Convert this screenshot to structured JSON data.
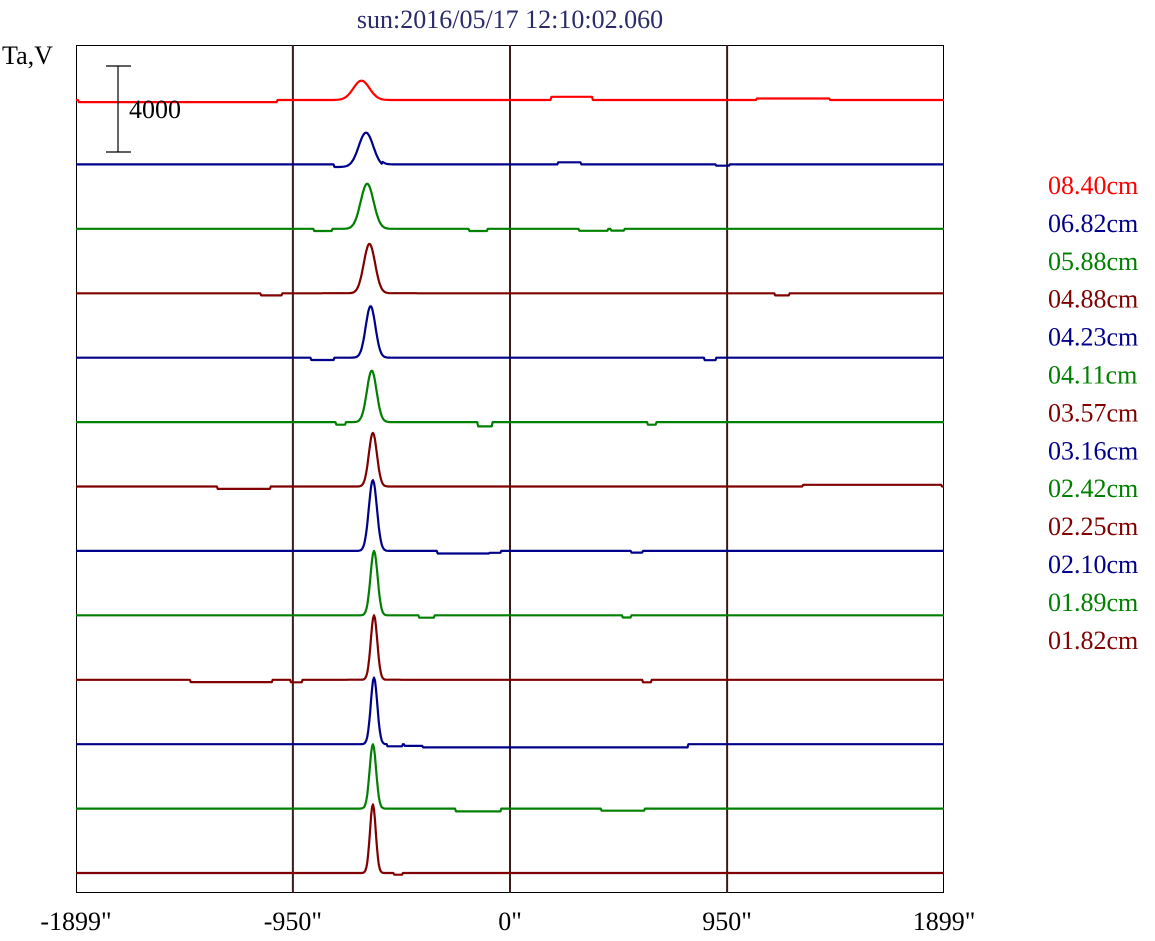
{
  "chart_data": {
    "type": "line",
    "title": "sun:2016/05/17 12:10:02.060",
    "ylabel": "Ta,V",
    "scale_bar_label": "4000",
    "scale_bar_value": 4000,
    "xlim": [
      -1899,
      1899
    ],
    "x_ticks": [
      {
        "value": -1899,
        "label": "-1899\""
      },
      {
        "value": -950,
        "label": "-950\""
      },
      {
        "value": 0,
        "label": "0\""
      },
      {
        "value": 950,
        "label": "950\""
      },
      {
        "value": 1899,
        "label": "1899\""
      }
    ],
    "vertical_grid_at": [
      -950,
      0,
      950
    ],
    "legend_position": "right",
    "offset_units_per_trace": 3000,
    "colors": {
      "red": "#ff0000",
      "navy": "#00008b",
      "green": "#008000",
      "maroon": "#800000",
      "grid": "#3a1a1a"
    },
    "series": [
      {
        "name": "08.40cm",
        "color": "#ff0000",
        "peak": {
          "x": -650,
          "amp": 900,
          "w": 50
        },
        "steps": [
          [
            -1020,
            -1890,
            -100
          ],
          [
            180,
            360,
            150
          ],
          [
            1080,
            1400,
            70
          ]
        ]
      },
      {
        "name": "06.82cm",
        "color": "#00008b",
        "peak": {
          "x": -630,
          "amp": 1600,
          "w": 45
        },
        "steps": [
          [
            -770,
            -560,
            -120
          ],
          [
            210,
            310,
            100
          ],
          [
            900,
            960,
            -60
          ]
        ]
      },
      {
        "name": "05.88cm",
        "color": "#008000",
        "peak": {
          "x": -625,
          "amp": 2100,
          "w": 40
        },
        "steps": [
          [
            -860,
            -780,
            -100
          ],
          [
            -180,
            -100,
            -100
          ],
          [
            300,
            430,
            -90
          ],
          [
            440,
            500,
            -80
          ]
        ]
      },
      {
        "name": "04.88cm",
        "color": "#800000",
        "peak": {
          "x": -615,
          "amp": 2300,
          "w": 35
        },
        "steps": [
          [
            -1090,
            -1000,
            -100
          ],
          [
            1160,
            1220,
            -100
          ]
        ]
      },
      {
        "name": "04.23cm",
        "color": "#00008b",
        "peak": {
          "x": -610,
          "amp": 2400,
          "w": 30
        },
        "steps": [
          [
            -870,
            -770,
            -110
          ],
          [
            850,
            900,
            -120
          ]
        ]
      },
      {
        "name": "04.11cm",
        "color": "#008000",
        "peak": {
          "x": -605,
          "amp": 2400,
          "w": 30
        },
        "steps": [
          [
            -760,
            -720,
            -120
          ],
          [
            -140,
            -80,
            -200
          ],
          [
            600,
            640,
            -120
          ]
        ]
      },
      {
        "name": "03.57cm",
        "color": "#800000",
        "peak": {
          "x": -600,
          "amp": 2500,
          "w": 25
        },
        "steps": [
          [
            -1280,
            -1050,
            -110
          ],
          [
            1280,
            1890,
            80
          ]
        ]
      },
      {
        "name": "03.16cm",
        "color": "#00008b",
        "peak": {
          "x": -600,
          "amp": 3300,
          "w": 25
        },
        "steps": [
          [
            -320,
            -90,
            -120
          ],
          [
            -90,
            -40,
            -90
          ],
          [
            530,
            580,
            -80
          ]
        ]
      },
      {
        "name": "02.42cm",
        "color": "#008000",
        "peak": {
          "x": -595,
          "amp": 3000,
          "w": 22
        },
        "steps": [
          [
            -400,
            -330,
            -110
          ],
          [
            490,
            530,
            -100
          ]
        ]
      },
      {
        "name": "02.25cm",
        "color": "#800000",
        "peak": {
          "x": -595,
          "amp": 3000,
          "w": 20
        },
        "steps": [
          [
            -1400,
            -1040,
            -110
          ],
          [
            -960,
            -910,
            -120
          ],
          [
            580,
            620,
            -120
          ]
        ]
      },
      {
        "name": "02.10cm",
        "color": "#00008b",
        "peak": {
          "x": -595,
          "amp": 3100,
          "w": 20
        },
        "steps": [
          [
            -540,
            -470,
            -100
          ],
          [
            -460,
            -380,
            -80
          ],
          [
            -380,
            780,
            -150
          ]
        ]
      },
      {
        "name": "01.89cm",
        "color": "#008000",
        "peak": {
          "x": -600,
          "amp": 3000,
          "w": 20
        },
        "steps": [
          [
            -240,
            -40,
            -130
          ],
          [
            400,
            590,
            -100
          ]
        ]
      },
      {
        "name": "01.82cm",
        "color": "#800000",
        "peak": {
          "x": -600,
          "amp": 3200,
          "w": 18
        },
        "steps": [
          [
            -510,
            -470,
            -80
          ]
        ]
      }
    ]
  }
}
